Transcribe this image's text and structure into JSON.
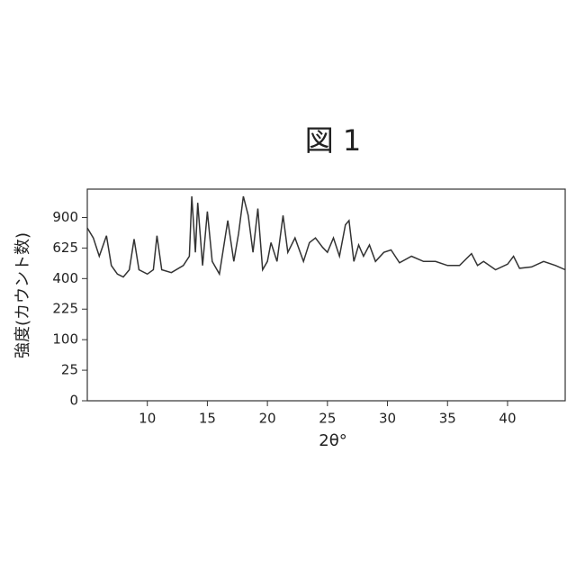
{
  "chart_data": {
    "type": "line",
    "title": "図 1",
    "y_label": "強度(カウント数)",
    "x_label": "2θ°",
    "y_scale": "sqrt",
    "color": "#333333",
    "xlim": [
      5,
      44.8
    ],
    "xticks": [
      10,
      15,
      20,
      25,
      30,
      35,
      40
    ],
    "ylim": [
      0,
      1200
    ],
    "yticks": [
      0,
      25,
      100,
      225,
      400,
      625,
      900
    ],
    "x": [
      5,
      5.5,
      6,
      6.6,
      7,
      7.5,
      8,
      8.5,
      8.9,
      9.3,
      10,
      10.5,
      10.8,
      11.2,
      12,
      13,
      13.5,
      13.7,
      14,
      14.2,
      14.6,
      15,
      15.4,
      16,
      16.7,
      17.2,
      17.6,
      18,
      18.4,
      18.8,
      19.2,
      19.6,
      20,
      20.3,
      20.8,
      21.3,
      21.7,
      22.3,
      23,
      23.5,
      24,
      24.6,
      25,
      25.5,
      26,
      26.5,
      26.8,
      27.2,
      27.6,
      28,
      28.5,
      29,
      29.7,
      30.3,
      31,
      32,
      33,
      34,
      35,
      36,
      37,
      37.5,
      38,
      39,
      40,
      40.5,
      41,
      42,
      43,
      44,
      44.8
    ],
    "values": [
      800,
      710,
      560,
      730,
      490,
      430,
      410,
      460,
      700,
      460,
      430,
      460,
      730,
      460,
      440,
      490,
      560,
      1120,
      590,
      1050,
      490,
      960,
      520,
      430,
      870,
      520,
      750,
      1120,
      920,
      590,
      990,
      460,
      520,
      670,
      520,
      920,
      590,
      710,
      520,
      670,
      710,
      630,
      590,
      710,
      560,
      830,
      870,
      520,
      650,
      560,
      650,
      520,
      590,
      610,
      510,
      560,
      520,
      520,
      490,
      490,
      580,
      490,
      520,
      460,
      500,
      560,
      470,
      480,
      520,
      490,
      460
    ]
  }
}
